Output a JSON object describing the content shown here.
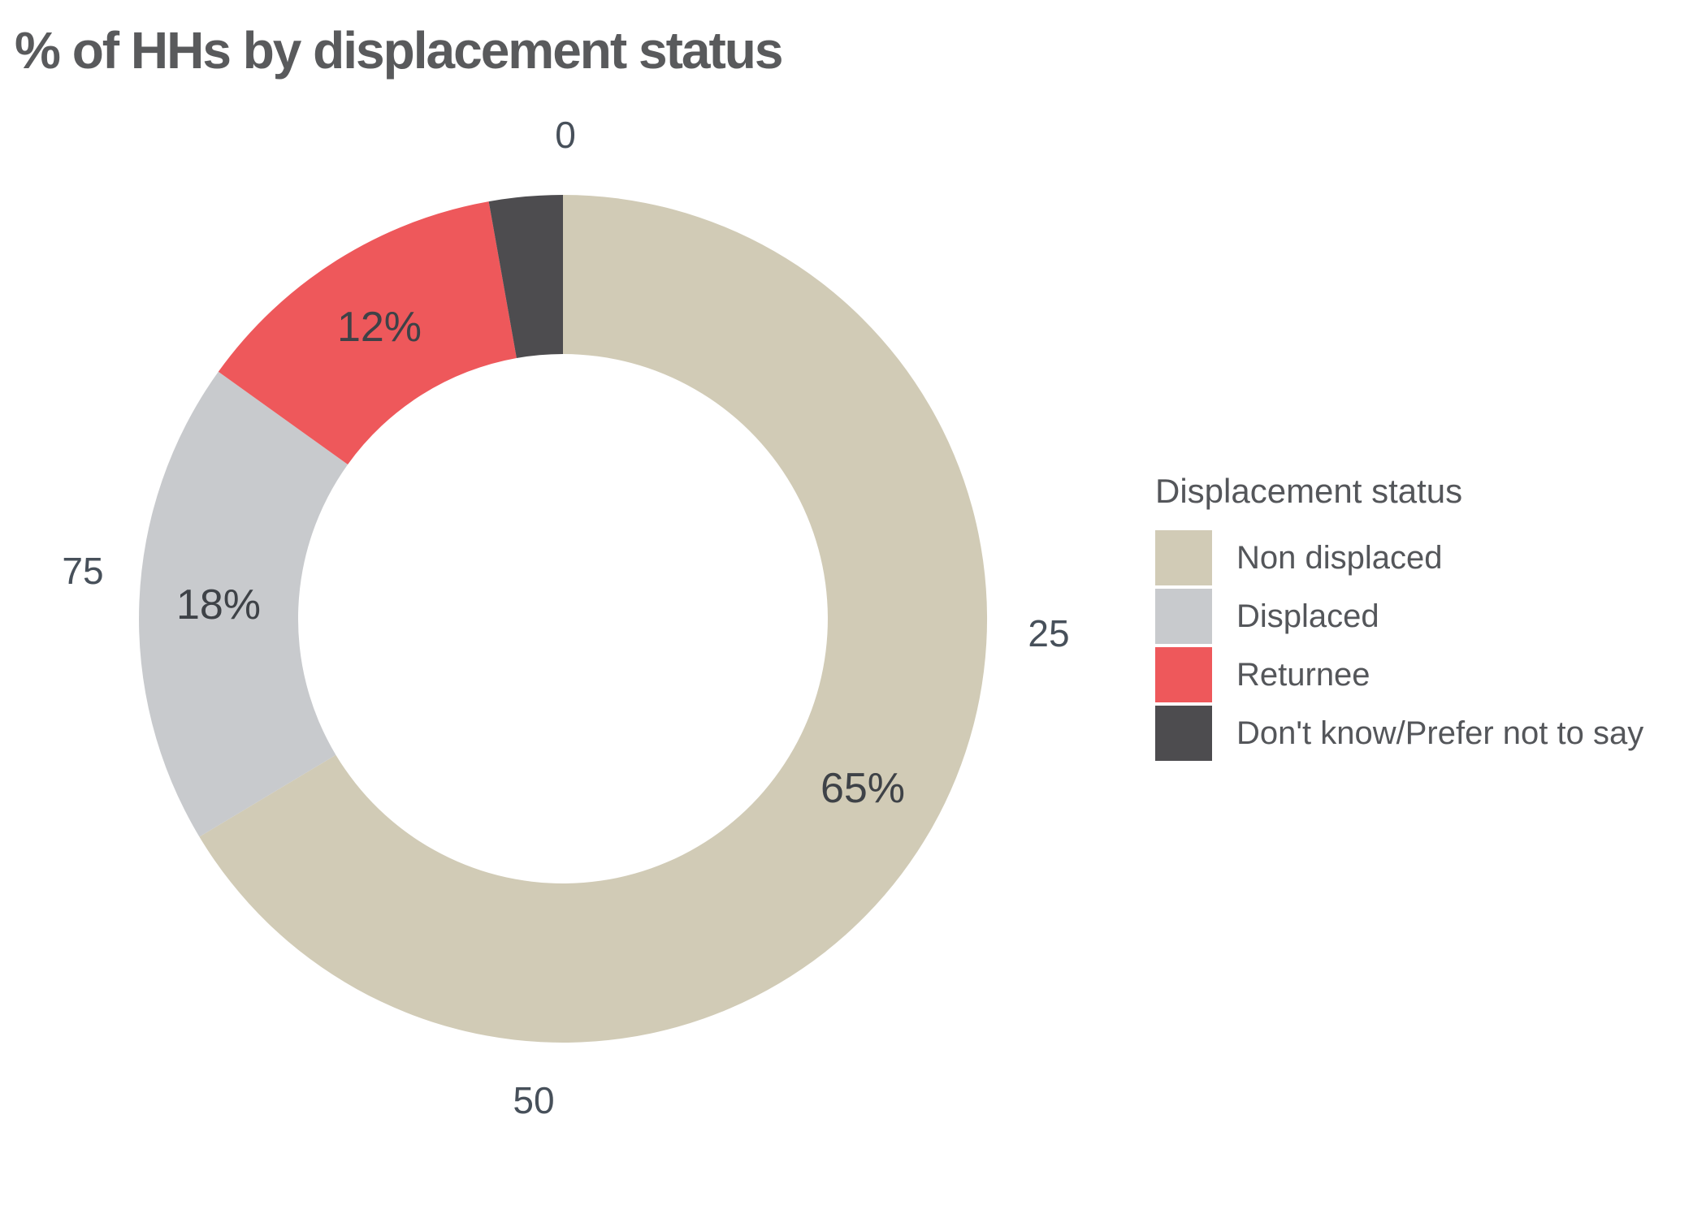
{
  "title": "% of HHs by displacement status",
  "chart_data": {
    "type": "pie",
    "subtype": "donut",
    "title": "% of HHs by displacement status",
    "legend_title": "Displacement status",
    "legend_position": "right",
    "start_angle": "top",
    "direction": "clockwise",
    "grid": false,
    "axis_ticks": [
      "0",
      "25",
      "50",
      "75"
    ],
    "slices": [
      {
        "name": "Non displaced",
        "label": "65%",
        "value_pct": 65,
        "arc_pct": 66.4,
        "color": "#D1CBB6"
      },
      {
        "name": "Displaced",
        "label": "18%",
        "value_pct": 18,
        "arc_pct": 18.5,
        "color": "#C8CACD"
      },
      {
        "name": "Returnee",
        "label": "12%",
        "value_pct": 12,
        "arc_pct": 12.3,
        "color": "#EE585B"
      },
      {
        "name": "Don't know/Prefer not to say",
        "label": "",
        "value_pct": 3,
        "arc_pct": 2.8,
        "color": "#4D4C4F"
      }
    ]
  },
  "colors": {
    "background": "#FFFFFF",
    "title_text": "#595A5C",
    "tick_text": "#47505A",
    "slice_label_text": "#3E4247",
    "legend_text": "#54565A"
  }
}
